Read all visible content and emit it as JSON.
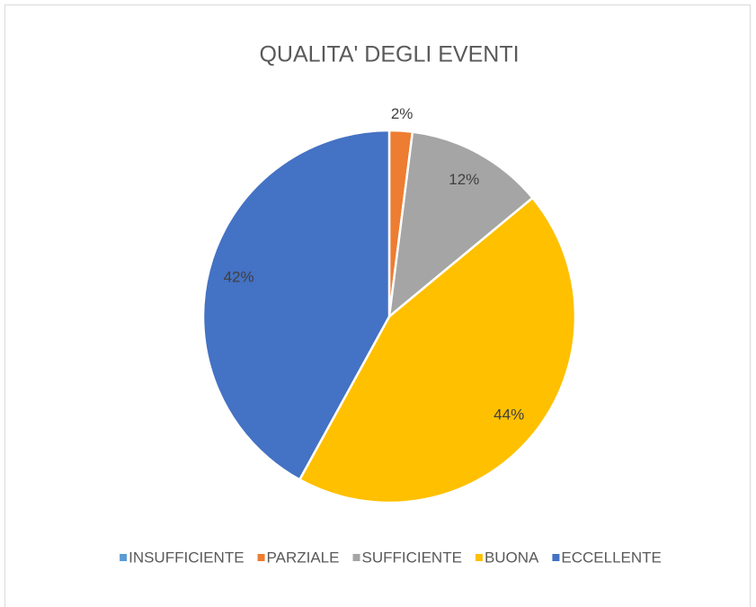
{
  "chart_data": {
    "type": "pie",
    "title": "QUALITA' DEGLI EVENTI",
    "categories": [
      "INSUFFICIENTE",
      "PARZIALE",
      "SUFFICIENTE",
      "BUONA",
      "ECCELLENTE"
    ],
    "values": [
      0,
      2,
      12,
      44,
      42
    ],
    "value_labels": [
      null,
      "2%",
      "12%",
      "44%",
      "42%"
    ],
    "colors": [
      "#5b9bd5",
      "#ed7d31",
      "#a5a5a5",
      "#ffc000",
      "#4472c4"
    ],
    "legend": "bottom"
  }
}
